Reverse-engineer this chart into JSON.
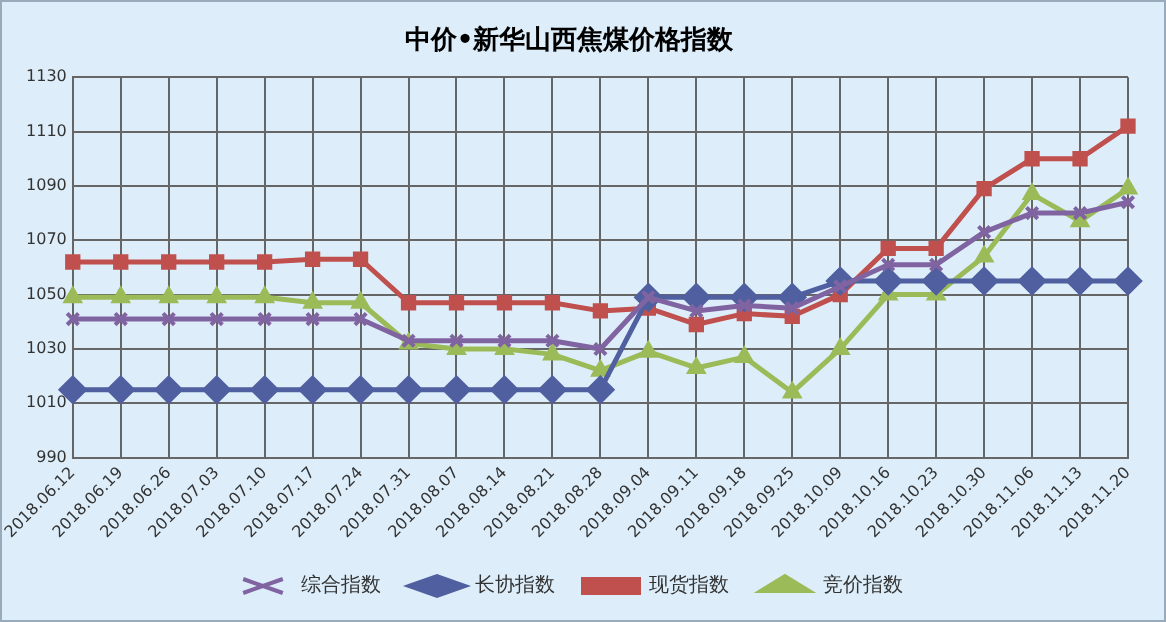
{
  "chart_data": {
    "type": "line",
    "title": "中价•新华山西焦煤价格指数",
    "categories": [
      "2018.06.12",
      "2018.06.19",
      "2018.06.26",
      "2018.07.03",
      "2018.07.10",
      "2018.07.17",
      "2018.07.24",
      "2018.07.31",
      "2018.08.07",
      "2018.08.14",
      "2018.08.21",
      "2018.08.28",
      "2018.09.04",
      "2018.09.11",
      "2018.09.18",
      "2018.09.25",
      "2018.10.09",
      "2018.10.16",
      "2018.10.23",
      "2018.10.30",
      "2018.11.06",
      "2018.11.13",
      "2018.11.20"
    ],
    "series": [
      {
        "name": "综合指数",
        "color": "#8064a2",
        "marker": "cross",
        "values": [
          1041,
          1041,
          1041,
          1041,
          1041,
          1041,
          1041,
          1033,
          1033,
          1033,
          1033,
          1030,
          1049,
          1044,
          1046,
          1045,
          1053,
          1061,
          1061,
          1073,
          1080,
          1080,
          1084
        ]
      },
      {
        "name": "长协指数",
        "color": "#4f5fa0",
        "marker": "diamond",
        "values": [
          1015,
          1015,
          1015,
          1015,
          1015,
          1015,
          1015,
          1015,
          1015,
          1015,
          1015,
          1015,
          1049,
          1049,
          1049,
          1049,
          1055,
          1055,
          1055,
          1055,
          1055,
          1055,
          1055
        ]
      },
      {
        "name": "现货指数",
        "color": "#c0504d",
        "marker": "square",
        "values": [
          1062,
          1062,
          1062,
          1062,
          1062,
          1063,
          1063,
          1047,
          1047,
          1047,
          1047,
          1044,
          1045,
          1039,
          1043,
          1042,
          1050,
          1067,
          1067,
          1089,
          1100,
          1100,
          1112
        ]
      },
      {
        "name": "竞价指数",
        "color": "#9bbb59",
        "marker": "triangle",
        "values": [
          1049,
          1049,
          1049,
          1049,
          1049,
          1047,
          1047,
          1032,
          1030,
          1030,
          1028,
          1022,
          1029,
          1023,
          1027,
          1014,
          1030,
          1050,
          1050,
          1064,
          1087,
          1077,
          1089
        ]
      }
    ],
    "ylim": [
      990,
      1130
    ],
    "yticks": [
      990,
      1010,
      1030,
      1050,
      1070,
      1090,
      1110,
      1130
    ],
    "grid": true,
    "legend": "bottom"
  }
}
